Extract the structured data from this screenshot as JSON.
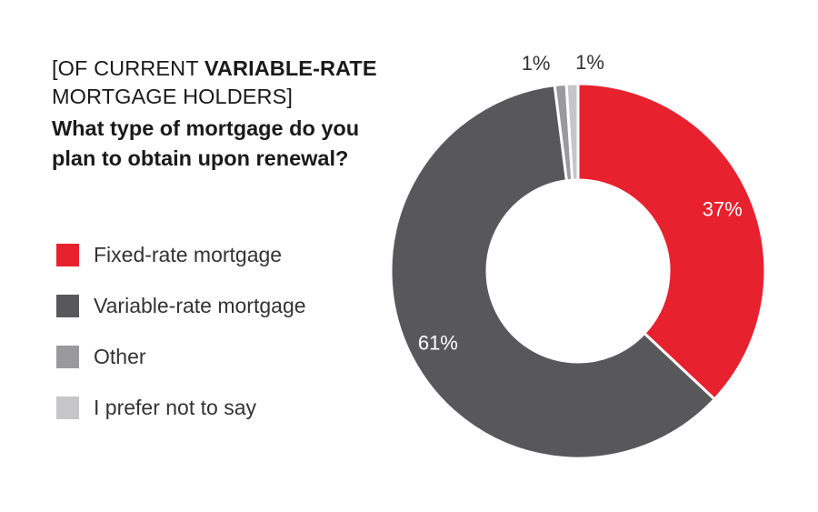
{
  "header": {
    "qualifier_prefix": "[OF CURRENT ",
    "qualifier_bold": "VARIABLE-RATE",
    "qualifier_line2": "MORTGAGE HOLDERS]",
    "question_line1": "What type of mortgage do you",
    "question_line2": "plan to obtain upon renewal?"
  },
  "chart_data": {
    "type": "pie",
    "style": "donut",
    "categories": [
      "Fixed-rate mortgage",
      "Variable-rate mortgage",
      "Other",
      "I prefer not to say"
    ],
    "values": [
      37,
      61,
      1,
      1
    ],
    "labels": [
      "37%",
      "61%",
      "1%",
      "1%"
    ],
    "colors": [
      "#e8212e",
      "#58585a",
      "#9a9a9c",
      "#c6c6c8"
    ],
    "legend_placement": "left"
  }
}
